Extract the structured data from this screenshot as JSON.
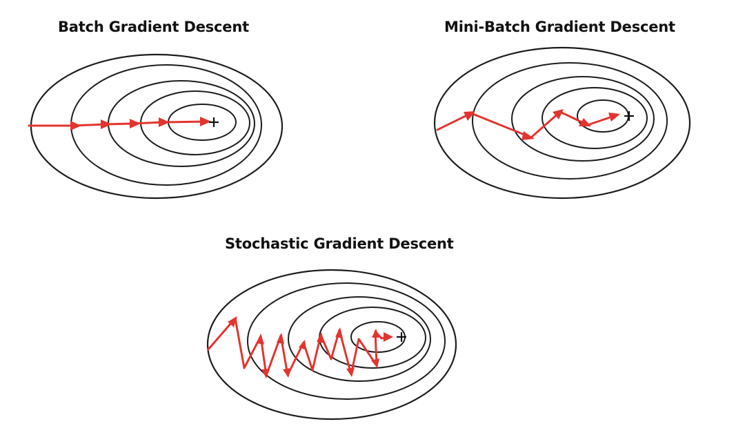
{
  "panels": [
    {
      "id": "batch",
      "title": "Batch Gradient Descent",
      "minimum_marker": "plus-icon",
      "path_color": "#e3342f"
    },
    {
      "id": "minibatch",
      "title": "Mini-Batch Gradient Descent",
      "minimum_marker": "plus-icon",
      "path_color": "#e3342f"
    },
    {
      "id": "stochastic",
      "title": "Stochastic Gradient Descent",
      "minimum_marker": "plus-icon",
      "path_color": "#e3342f"
    }
  ],
  "colors": {
    "contour": "#1c1c1c",
    "descent_path": "#e3342f",
    "background": "#ffffff"
  }
}
